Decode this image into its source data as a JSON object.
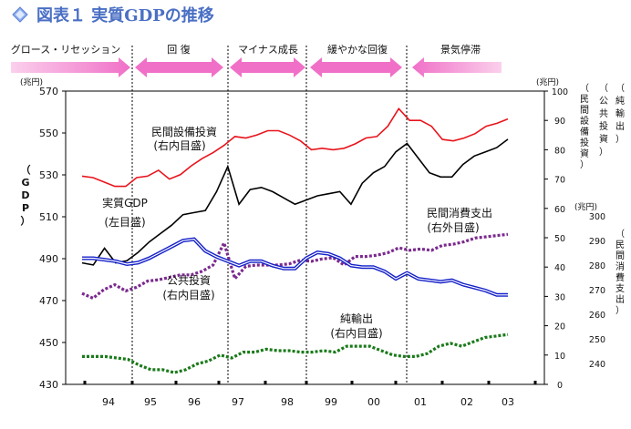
{
  "title": "図表１ 実質GDPの推移",
  "title_color": "#5b7fd6",
  "phases": [
    "グロース・リセッション",
    "回 復",
    "マイナス成長",
    "緩やかな回復",
    "景気停滞"
  ],
  "chart_data": {
    "type": "line",
    "x_ticks": [
      "94",
      "95",
      "96",
      "97",
      "98",
      "99",
      "00",
      "01",
      "02",
      "03"
    ],
    "left_axis": {
      "unit": "(兆円)",
      "ticks": [
        "430",
        "450",
        "470",
        "490",
        "510",
        "530",
        "550",
        "570"
      ],
      "range": [
        430,
        570
      ],
      "label": "（GDP）"
    },
    "right_inner_axis": {
      "unit": "(兆円)",
      "ticks": [
        "0",
        "10",
        "20",
        "30",
        "40",
        "50",
        "60",
        "70",
        "80",
        "90",
        "100"
      ],
      "range": [
        0,
        100
      ]
    },
    "right_outer_axis": {
      "unit": "(兆円)",
      "ticks": [
        "240",
        "250",
        "260",
        "270",
        "280",
        "290",
        "300"
      ],
      "range": [
        240,
        300
      ],
      "label": "（民間消費支出）"
    },
    "right_labels": [
      "（純輸出）",
      "（公共投資）",
      "（民間設備投資）"
    ],
    "series": [
      {
        "name": "実質GDP",
        "label": [
          "実質GDP",
          "(左目盛)"
        ],
        "axis": "left",
        "color": "#000000",
        "style": "solid",
        "values": [
          488,
          487,
          495,
          488,
          489,
          493,
          498,
          502,
          506,
          511,
          512,
          513,
          522,
          534,
          516,
          523,
          524,
          522,
          519,
          516,
          518,
          520,
          521,
          522,
          516,
          526,
          531,
          534,
          541,
          545,
          538,
          531,
          529,
          529,
          535,
          539,
          541,
          543,
          547
        ]
      },
      {
        "name": "民間設備投資",
        "label": [
          "民間設備投資",
          "(右内目盛)"
        ],
        "axis": "right_inner",
        "color": "#e8141c",
        "style": "solid",
        "values": [
          71,
          70.5,
          69,
          67.5,
          67.5,
          70.5,
          71,
          73,
          70,
          71.5,
          74.5,
          77,
          79,
          81.5,
          84.5,
          84,
          85,
          86.5,
          86.5,
          85,
          83,
          80,
          80.5,
          80,
          80.5,
          82,
          84,
          84.5,
          88,
          94,
          90,
          90,
          88,
          83.5,
          83,
          84,
          85.5,
          88,
          89,
          90.5
        ]
      },
      {
        "name": "民間消費支出",
        "label": [
          "民間消費支出",
          "(右外目盛)"
        ],
        "axis": "right_outer",
        "color": "#7b2a8e",
        "style": "dotted",
        "values": [
          268.5,
          266.5,
          270,
          272,
          269.5,
          271,
          273.5,
          274,
          275,
          276,
          276,
          277.5,
          280,
          289,
          274.5,
          279.5,
          280,
          280,
          280,
          280.5,
          282,
          281.5,
          282.5,
          283,
          280,
          283.5,
          283.5,
          284,
          285,
          287,
          286,
          286.5,
          286,
          288,
          288.5,
          289.5,
          291,
          291.5,
          292,
          292.5
        ]
      },
      {
        "name": "公共投資",
        "label": [
          "公共投資",
          "(右内目盛)"
        ],
        "axis": "right_inner",
        "color": "#1420c8",
        "style": "double",
        "values": [
          43,
          43,
          42.5,
          42,
          41,
          41.5,
          43,
          45,
          47,
          49,
          49.5,
          45.5,
          43.5,
          42,
          40.5,
          42,
          42,
          40.5,
          39.5,
          39.5,
          43,
          45,
          44.5,
          43,
          40.5,
          40,
          40,
          38.5,
          36,
          38,
          36,
          35.5,
          35,
          35.5,
          34,
          33,
          32,
          30.5,
          30.5
        ]
      },
      {
        "name": "純輸出",
        "label": [
          "純輸出",
          "(右内目盛)"
        ],
        "axis": "right_inner",
        "color": "#1a7a1a",
        "style": "dotted",
        "values": [
          9.5,
          9.5,
          9.5,
          9,
          8.5,
          6.5,
          5,
          5,
          4,
          5,
          7,
          8,
          10,
          9,
          11,
          11,
          12,
          11.5,
          11.5,
          11,
          11,
          11.5,
          11,
          13,
          13,
          13,
          11.5,
          10,
          9.5,
          9.5,
          10.5,
          13,
          14,
          13,
          14.5,
          16,
          16.5,
          17
        ]
      }
    ]
  }
}
